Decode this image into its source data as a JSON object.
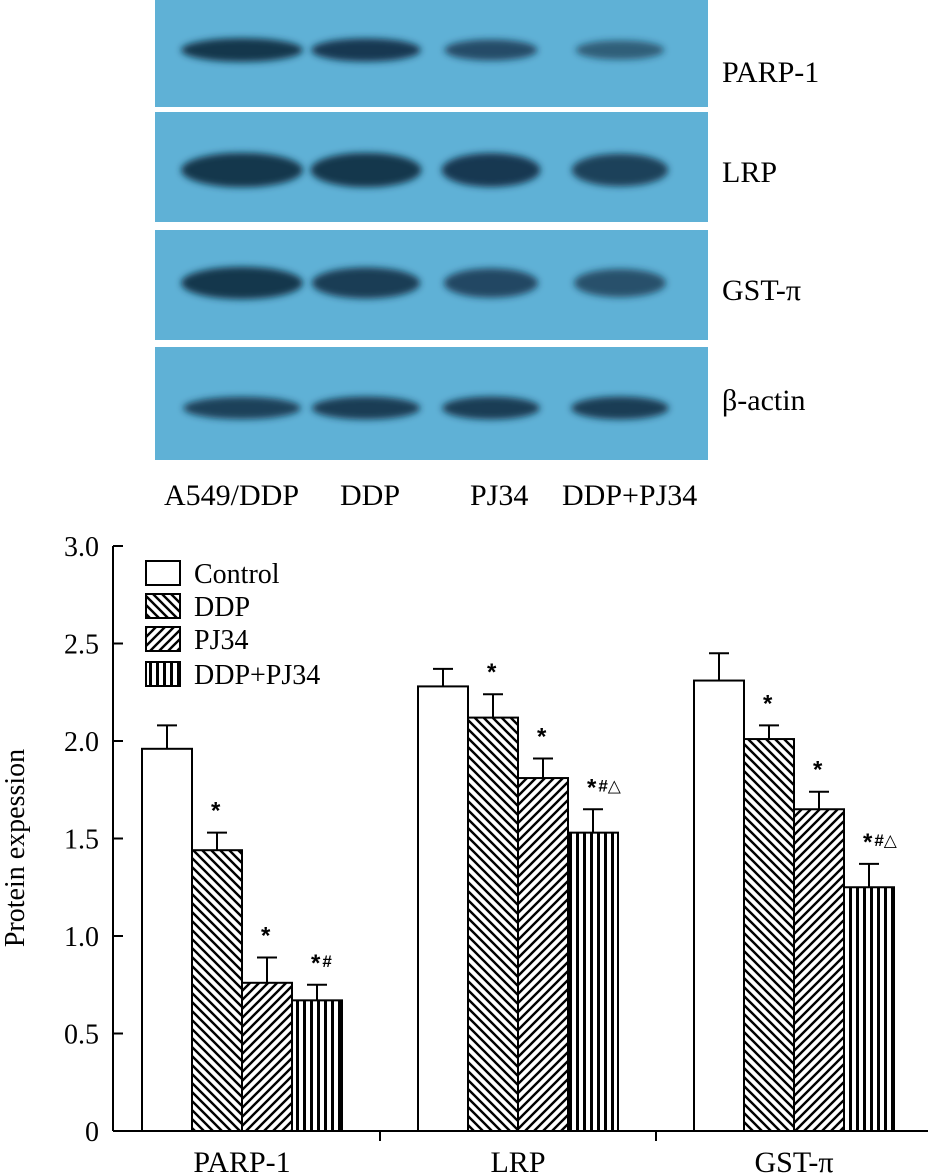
{
  "blot": {
    "panels": [
      {
        "label": "PARP-1",
        "intensities": [
          0.95,
          0.9,
          0.65,
          0.45
        ]
      },
      {
        "label": "LRP",
        "intensities": [
          0.95,
          0.95,
          0.9,
          0.8
        ]
      },
      {
        "label": "GST-π",
        "intensities": [
          0.95,
          0.85,
          0.7,
          0.6
        ]
      },
      {
        "label": "β-actin",
        "intensities": [
          0.8,
          0.85,
          0.85,
          0.85
        ]
      }
    ],
    "lane_labels": [
      "A549/DDP",
      "DDP",
      "PJ34",
      "DDP+PJ34"
    ],
    "colors": {
      "background": "#5fb1d6",
      "band": "#0d2a40"
    }
  },
  "chart_data": {
    "type": "bar",
    "categories": [
      "PARP-1",
      "LRP",
      "GST-π"
    ],
    "ylabel": "Protein expession",
    "ylim": [
      0,
      3.0
    ],
    "yticks": [
      "0",
      "0.5",
      "1.0",
      "1.5",
      "2.0",
      "2.5",
      "3.0"
    ],
    "legend": {
      "placement": "top-left"
    },
    "series": [
      {
        "name": "Control",
        "pattern": "blank",
        "values": [
          1.96,
          2.28,
          2.31
        ],
        "errors": [
          0.12,
          0.09,
          0.14
        ],
        "annotations": [
          "",
          "",
          ""
        ]
      },
      {
        "name": "DDP",
        "pattern": "back-diag",
        "values": [
          1.44,
          2.12,
          2.01
        ],
        "errors": [
          0.09,
          0.12,
          0.07
        ],
        "annotations": [
          "*",
          "*",
          "*"
        ]
      },
      {
        "name": "PJ34",
        "pattern": "fwd-diag",
        "values": [
          0.76,
          1.81,
          1.65
        ],
        "errors": [
          0.13,
          0.1,
          0.09
        ],
        "annotations": [
          "*",
          "*",
          "*"
        ]
      },
      {
        "name": "DDP+PJ34",
        "pattern": "vertical",
        "values": [
          0.67,
          1.53,
          1.25
        ],
        "errors": [
          0.08,
          0.12,
          0.12
        ],
        "annotations": [
          "*#",
          "*#△",
          "*#△"
        ]
      }
    ]
  }
}
